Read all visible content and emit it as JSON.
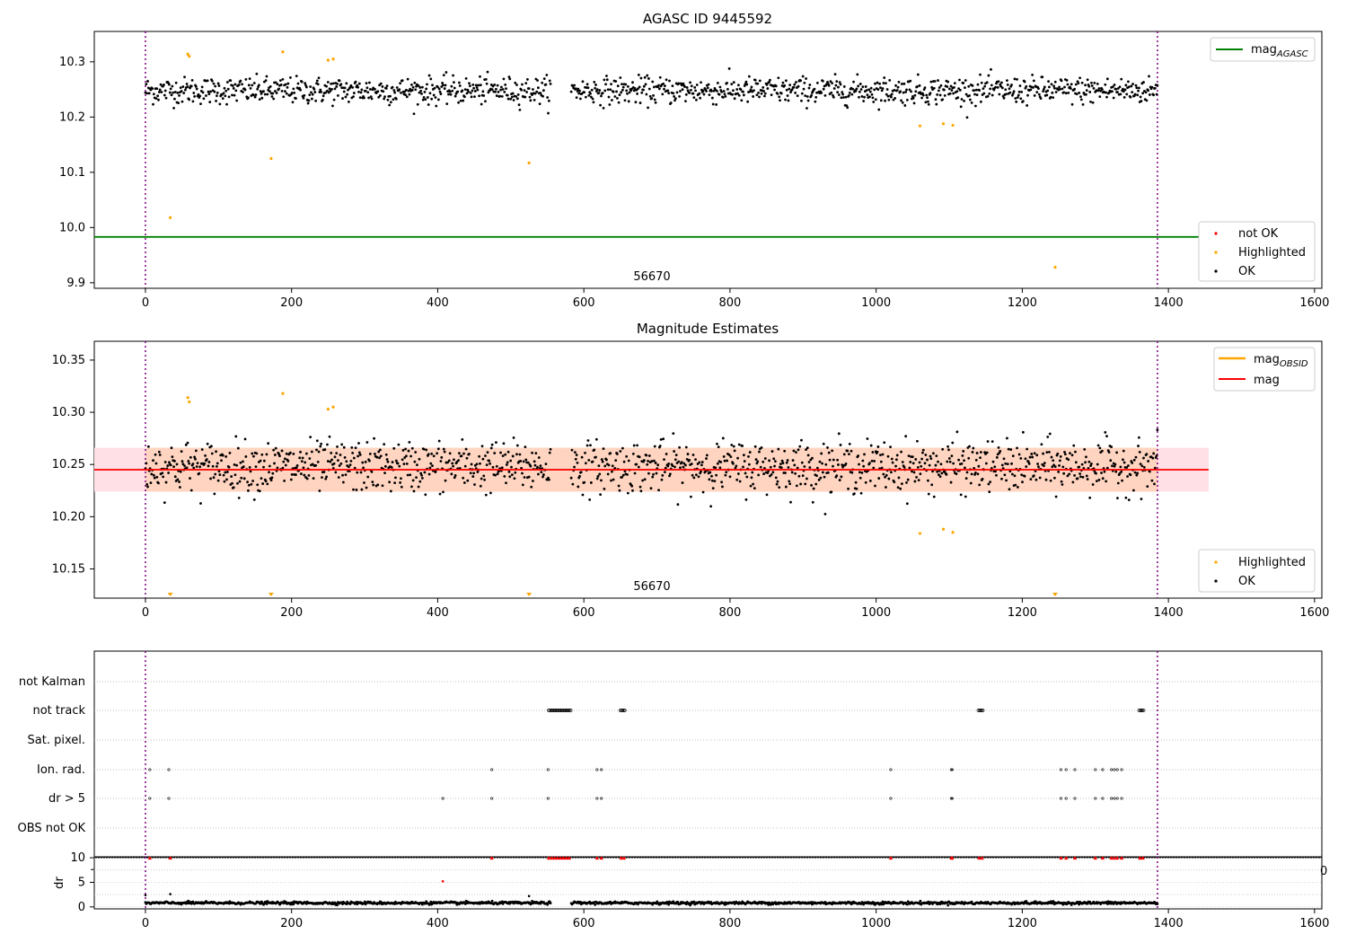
{
  "chart_data": [
    {
      "type": "scatter",
      "title": "AGASC ID 9445592",
      "xlim": [
        -70,
        1610
      ],
      "ylim": [
        9.89,
        10.355
      ],
      "xticks": [
        0,
        200,
        400,
        600,
        800,
        1000,
        1200,
        1400,
        1600
      ],
      "yticks": [
        9.9,
        10.0,
        10.1,
        10.2,
        10.3
      ],
      "ytick_labels": [
        "9.9",
        "10.0",
        "10.1",
        "10.2",
        "10.3"
      ],
      "vlines": [
        0,
        1385
      ],
      "annotation": {
        "text": "56670",
        "x": 690
      },
      "reference_lines": [
        {
          "name": "mag_AGASC",
          "label_main": "mag",
          "label_sub": "AGASC",
          "y": 9.983,
          "x_end": 1545,
          "color": "#008000"
        }
      ],
      "legend_top": {
        "position": "top-right"
      },
      "legend_bottom": {
        "position": "bottom-right",
        "entries": [
          "not OK",
          "Highlighted",
          "OK"
        ]
      },
      "series": [
        {
          "name": "OK",
          "color": "#000000",
          "x_range": [
            0,
            1385
          ],
          "gaps": [
            [
              555,
              582
            ]
          ],
          "y_center": 10.248,
          "y_spread": 0.022
        },
        {
          "name": "Highlighted",
          "color": "#ffa500",
          "points": [
            [
              34,
              10.018
            ],
            [
              58,
              10.314
            ],
            [
              60,
              10.31
            ],
            [
              172,
              10.125
            ],
            [
              188,
              10.318
            ],
            [
              250,
              10.303
            ],
            [
              257,
              10.305
            ],
            [
              525,
              10.117
            ],
            [
              1060,
              10.184
            ],
            [
              1092,
              10.188
            ],
            [
              1105,
              10.185
            ],
            [
              1245,
              9.928
            ]
          ]
        },
        {
          "name": "not OK",
          "color": "#ff0000",
          "points": []
        }
      ]
    },
    {
      "type": "scatter",
      "title": "Magnitude Estimates",
      "xlim": [
        -70,
        1610
      ],
      "ylim": [
        10.122,
        10.368
      ],
      "xticks": [
        0,
        200,
        400,
        600,
        800,
        1000,
        1200,
        1400,
        1600
      ],
      "yticks": [
        10.15,
        10.2,
        10.25,
        10.3,
        10.35
      ],
      "ytick_labels": [
        "10.15",
        "10.20",
        "10.25",
        "10.30",
        "10.35"
      ],
      "vlines": [
        0,
        1385
      ],
      "annotation": {
        "text": "56670",
        "x": 690
      },
      "band": {
        "y_low": 10.224,
        "y_high": 10.266,
        "x_end": 1455
      },
      "reference_lines": [
        {
          "name": "mag",
          "label_main": "mag",
          "label_sub": "",
          "y": 10.245,
          "x_end": 1455,
          "color": "#ff0000"
        },
        {
          "name": "mag_OBSID",
          "label_main": "mag",
          "label_sub": "OBSID",
          "y": 10.245,
          "x_end": 1385,
          "color": "#ffa500"
        }
      ],
      "legend_top": {
        "position": "top-right"
      },
      "legend_bottom": {
        "position": "bottom-right",
        "entries": [
          "Highlighted",
          "OK"
        ]
      },
      "offscale_markers_x": [
        34,
        172,
        525,
        1245
      ],
      "series": [
        {
          "name": "OK",
          "color": "#000000",
          "x_range": [
            0,
            1385
          ],
          "gaps": [
            [
              555,
              582
            ]
          ],
          "y_center": 10.248,
          "y_spread": 0.022
        },
        {
          "name": "Highlighted",
          "color": "#ffa500",
          "points": [
            [
              58,
              10.314
            ],
            [
              60,
              10.31
            ],
            [
              188,
              10.318
            ],
            [
              250,
              10.303
            ],
            [
              257,
              10.305
            ],
            [
              1060,
              10.184
            ],
            [
              1092,
              10.188
            ],
            [
              1105,
              10.185
            ]
          ]
        }
      ]
    },
    {
      "type": "scatter",
      "title": "",
      "xlim": [
        -70,
        1610
      ],
      "categories": [
        "not Kalman",
        "not track",
        "Sat. pixel.",
        "Ion. rad.",
        "dr > 5",
        "OBS not OK"
      ],
      "vlines": [
        0,
        1385
      ],
      "flags": {
        "not track": [
          [
            552,
            582
          ],
          [
            650,
            656
          ],
          [
            1140,
            1146
          ],
          [
            1360,
            1366
          ]
        ],
        "Ion. rad.": [
          6,
          32,
          474,
          551,
          618,
          624,
          1020,
          1103,
          1104,
          1253,
          1260,
          1272,
          1300,
          1310,
          1322,
          1326,
          1330,
          1336
        ],
        "dr > 5": [
          6,
          32,
          407,
          474,
          551,
          618,
          624,
          1020,
          1103,
          1104,
          1253,
          1260,
          1272,
          1300,
          1310,
          1322,
          1326,
          1330,
          1336
        ]
      },
      "clipped_label": "0"
    },
    {
      "type": "scatter",
      "title": "",
      "xlim": [
        -70,
        1610
      ],
      "ylim": [
        -0.4,
        10.2
      ],
      "ylabel": "dr",
      "xticks": [
        0,
        200,
        400,
        600,
        800,
        1000,
        1200,
        1400,
        1600
      ],
      "yticks": [
        0,
        5,
        10
      ],
      "ytick_labels": [
        "0",
        "5",
        "10"
      ],
      "vlines": [
        0,
        1385
      ],
      "clipped_at_10_x": [
        6,
        34,
        474,
        552,
        556,
        560,
        564,
        568,
        572,
        576,
        580,
        618,
        624,
        651,
        655,
        1020,
        1103,
        1104,
        1141,
        1145,
        1253,
        1260,
        1272,
        1300,
        1310,
        1322,
        1326,
        1330,
        1336,
        1361,
        1365
      ],
      "outliers": [
        [
          407,
          5.2
        ],
        [
          34,
          2.6
        ],
        [
          525,
          2.2
        ],
        [
          0,
          2.4
        ]
      ],
      "series": [
        {
          "name": "dr",
          "color": "#000000",
          "x_range": [
            0,
            1385
          ],
          "gaps": [
            [
              555,
              582
            ]
          ],
          "y_center": 0.8,
          "y_spread": 0.25
        }
      ]
    }
  ]
}
